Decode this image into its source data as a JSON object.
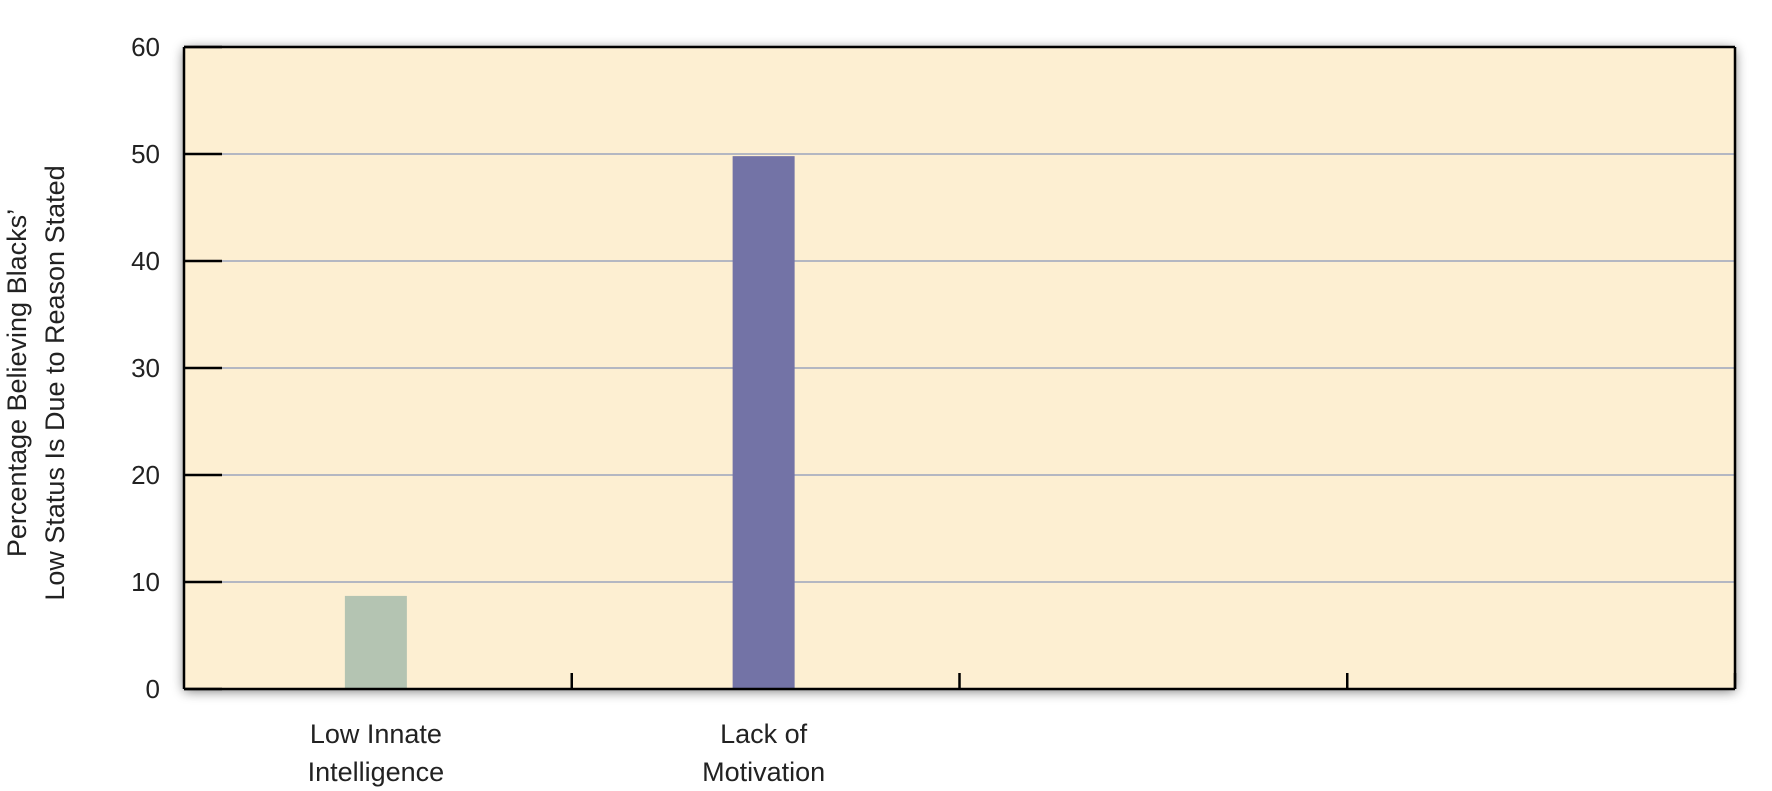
{
  "chart_data": {
    "type": "bar",
    "categories": [
      "Low Innate\nIntelligence",
      "Lack of\nMotivation",
      "",
      ""
    ],
    "values": [
      8.7,
      49.8,
      null,
      null
    ],
    "bar_colors": [
      "#b4c4b2",
      "#7373a6"
    ],
    "ylabel_lines": [
      "Percentage Believing Blacks’",
      "Low Status Is Due to Reason Stated"
    ],
    "ylim": [
      0,
      60
    ],
    "yticks": [
      0,
      10,
      20,
      30,
      40,
      50,
      60
    ],
    "grid": true,
    "background_color": "#fdefd2",
    "grid_color": "#b4b7c2"
  }
}
